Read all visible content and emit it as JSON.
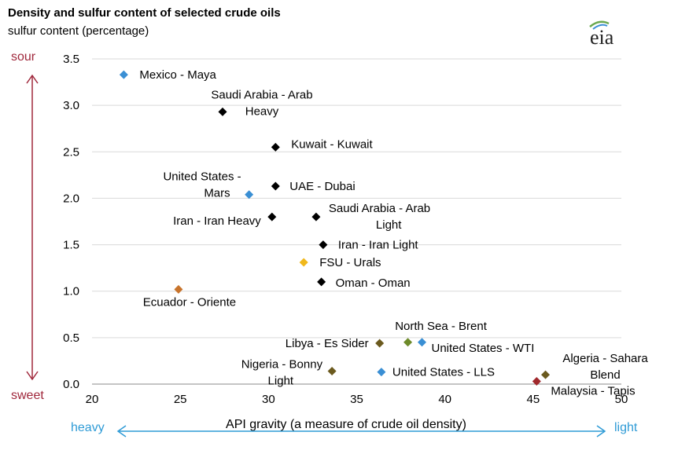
{
  "chart_data": {
    "type": "scatter",
    "title": "Density and sulfur content of selected crude oils",
    "subtitle": "sulfur content (percentage)",
    "xlabel": "API gravity (a measure of crude oil density)",
    "ylabel": "",
    "xlim": [
      20,
      50
    ],
    "ylim": [
      0,
      3.5
    ],
    "x_ticks": [
      "20",
      "25",
      "30",
      "35",
      "40",
      "45",
      "50"
    ],
    "y_ticks": [
      "0.0",
      "0.5",
      "1.0",
      "1.5",
      "2.0",
      "2.5",
      "3.0",
      "3.5"
    ],
    "grid": "horizontal",
    "y_axis_labels": {
      "top": "sour",
      "bottom": "sweet"
    },
    "x_axis_labels": {
      "left": "heavy",
      "right": "light"
    },
    "points": [
      {
        "label": "Mexico - Maya",
        "x": 21.8,
        "y": 3.33,
        "color": "#3a8fd4"
      },
      {
        "label": "Saudi Arabia - Arab Heavy",
        "x": 27.4,
        "y": 2.93,
        "color": "#000000"
      },
      {
        "label": "Kuwait - Kuwait",
        "x": 30.4,
        "y": 2.55,
        "color": "#000000"
      },
      {
        "label": "United States - Mars",
        "x": 28.9,
        "y": 2.04,
        "color": "#3a8fd4"
      },
      {
        "label": "UAE - Dubai",
        "x": 30.4,
        "y": 2.13,
        "color": "#000000"
      },
      {
        "label": "Iran - Iran Heavy",
        "x": 30.2,
        "y": 1.8,
        "color": "#000000"
      },
      {
        "label": "Saudi Arabia - Arab Light",
        "x": 32.7,
        "y": 1.8,
        "color": "#000000"
      },
      {
        "label": "Iran - Iran Light",
        "x": 33.1,
        "y": 1.5,
        "color": "#000000"
      },
      {
        "label": "FSU - Urals",
        "x": 32.0,
        "y": 1.31,
        "color": "#f0b81c"
      },
      {
        "label": "Oman - Oman",
        "x": 33.0,
        "y": 1.1,
        "color": "#000000"
      },
      {
        "label": "Ecuador - Oriente",
        "x": 24.9,
        "y": 1.02,
        "color": "#c8742c"
      },
      {
        "label": "North Sea - Brent",
        "x": 37.9,
        "y": 0.45,
        "color": "#6e8b2a"
      },
      {
        "label": "Libya - Es Sider",
        "x": 36.3,
        "y": 0.44,
        "color": "#6b5a1e"
      },
      {
        "label": "United States - WTI",
        "x": 38.7,
        "y": 0.45,
        "color": "#3a8fd4"
      },
      {
        "label": "Nigeria - Bonny Light",
        "x": 33.6,
        "y": 0.14,
        "color": "#6b5a1e"
      },
      {
        "label": "United States - LLS",
        "x": 36.4,
        "y": 0.13,
        "color": "#3a8fd4"
      },
      {
        "label": "Algeria - Sahara Blend",
        "x": 45.7,
        "y": 0.1,
        "color": "#6b5a1e"
      },
      {
        "label": "Malaysia - Tapis",
        "x": 45.2,
        "y": 0.03,
        "color": "#a0282c"
      }
    ]
  },
  "logo": {
    "text": "eia"
  }
}
